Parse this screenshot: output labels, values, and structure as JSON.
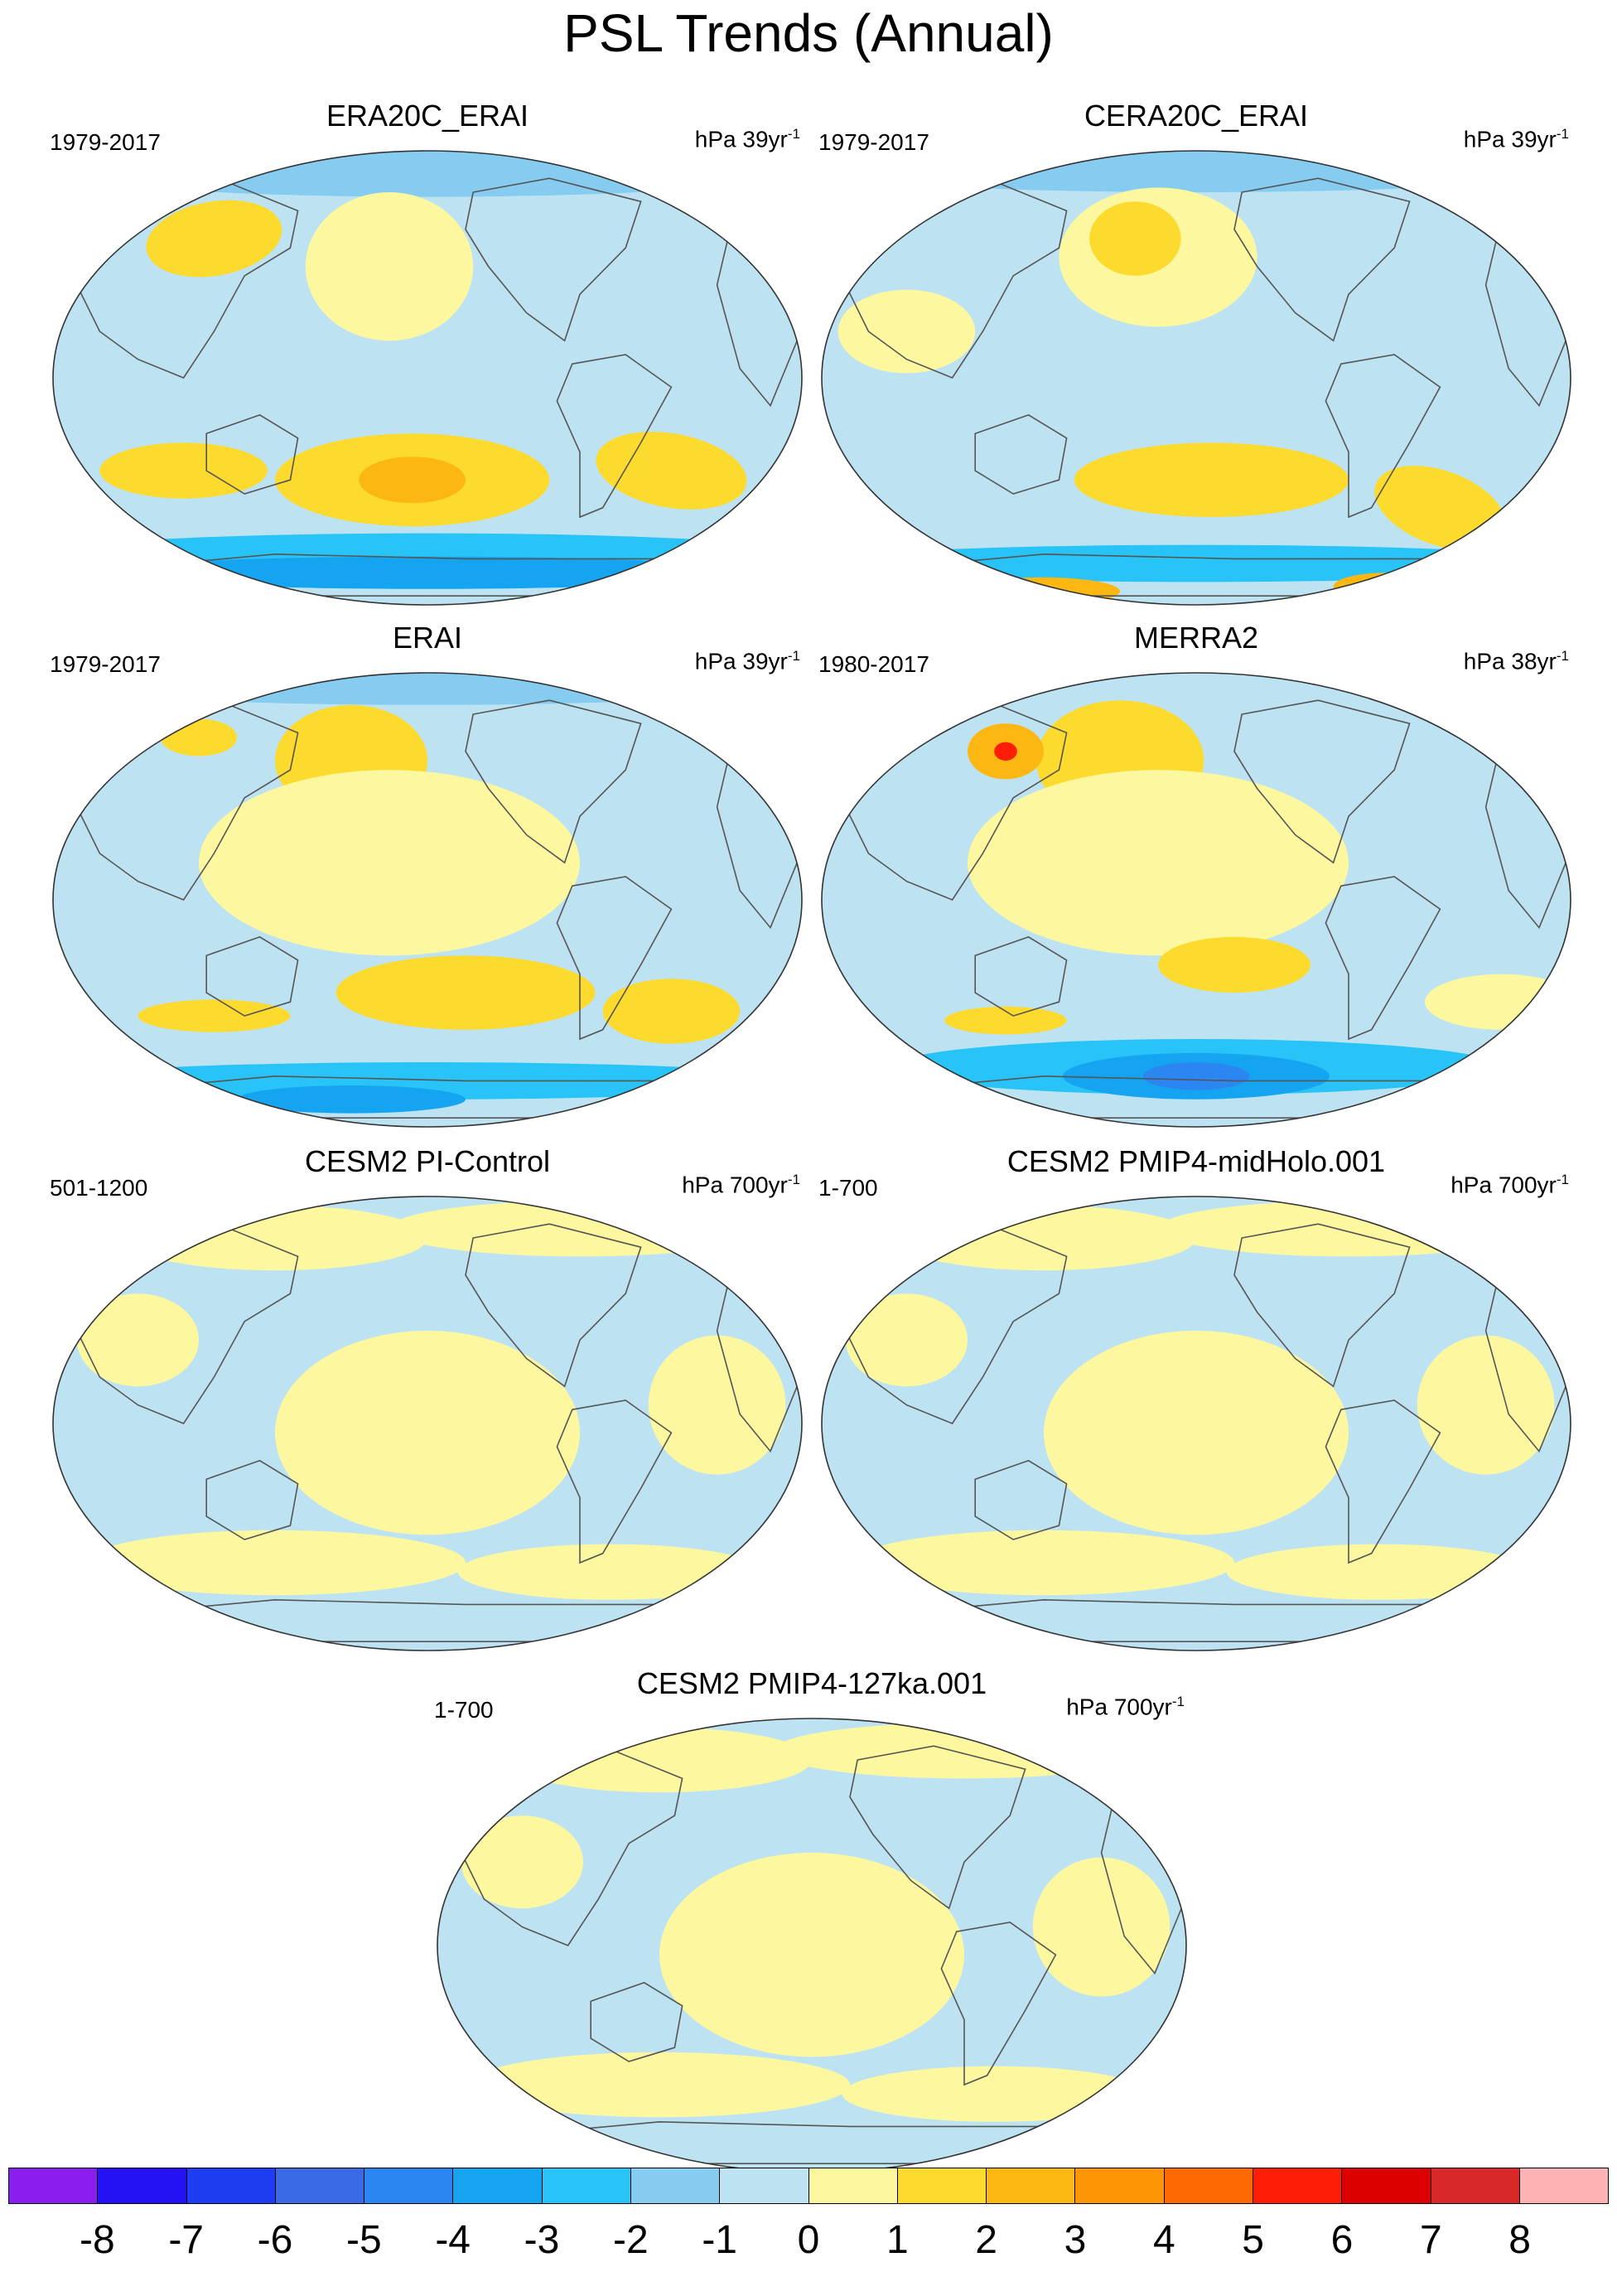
{
  "title": "PSL Trends (Annual)",
  "panels": [
    {
      "title": "ERA20C_ERAI",
      "period": "1979-2017",
      "units_base": "hPa 39yr",
      "units_exp": "-1",
      "scheme": "reanalysis_strong_south"
    },
    {
      "title": "CERA20C_ERAI",
      "period": "1979-2017",
      "units_base": "hPa 39yr",
      "units_exp": "-1",
      "scheme": "reanalysis_mixed_south"
    },
    {
      "title": "ERAI",
      "period": "1979-2017",
      "units_base": "hPa 39yr",
      "units_exp": "-1",
      "scheme": "reanalysis_moderate"
    },
    {
      "title": "MERRA2",
      "period": "1980-2017",
      "units_base": "hPa 38yr",
      "units_exp": "-1",
      "scheme": "reanalysis_moderate_blue_south"
    },
    {
      "title": "CESM2 PI-Control",
      "period": "501-1200",
      "units_base": "hPa 700yr",
      "units_exp": "-1",
      "scheme": "model_weak"
    },
    {
      "title": "CESM2 PMIP4-midHolo.001",
      "period": "1-700",
      "units_base": "hPa 700yr",
      "units_exp": "-1",
      "scheme": "model_weak"
    },
    {
      "title": "CESM2 PMIP4-127ka.001",
      "period": "1-700",
      "units_base": "hPa 700yr",
      "units_exp": "-1",
      "scheme": "model_weak"
    }
  ],
  "colorbar": {
    "labels": [
      "-8",
      "-7",
      "-6",
      "-5",
      "-4",
      "-3",
      "-2",
      "-1",
      "0",
      "1",
      "2",
      "3",
      "4",
      "5",
      "6",
      "7",
      "8"
    ],
    "colors": [
      "#8a1eef",
      "#2412f5",
      "#1e3cf0",
      "#3a6ae6",
      "#2b86f2",
      "#15a5f0",
      "#28c4f7",
      "#86ccf0",
      "#bde3f2",
      "#fdf8a0",
      "#fdda2e",
      "#fdb713",
      "#fd9505",
      "#fd6a03",
      "#fd1e05",
      "#dc0000",
      "#d9282a",
      "#fdb3b3"
    ]
  }
}
